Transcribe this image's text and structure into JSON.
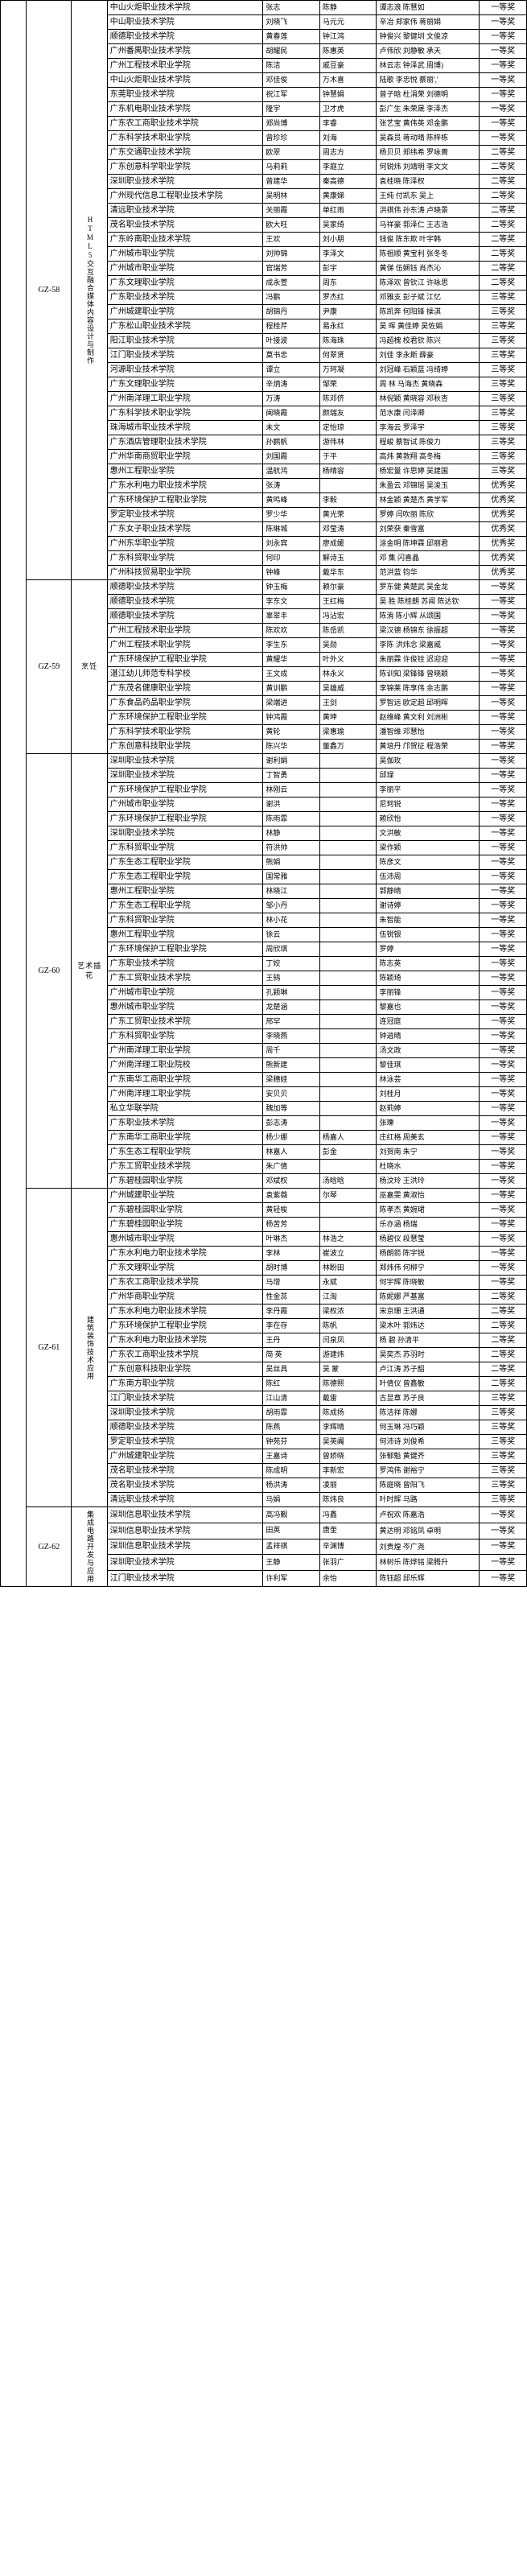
{
  "groups": [
    {
      "code": "GZ-58",
      "category": "HTML5交互融合媒体内容设计与制作",
      "category_vertical": true,
      "rows": [
        {
          "school": "中山火炬职业技术学院",
          "t1": "张志",
          "t2": "陈静",
          "adv": "谭志浪 陈慧如",
          "award": "一等奖"
        },
        {
          "school": "中山职业技术学院",
          "t1": "刘晓飞",
          "t2": "马元元",
          "adv": "辛冶 郑家伟 蒋丽娟",
          "award": "一等奖"
        },
        {
          "school": "顺德职业技术学院",
          "t1": "黄春莲",
          "t2": "钟江鸿",
          "adv": "钟俊兴 黎健圳 文俊凉",
          "award": "一等奖"
        },
        {
          "school": "广州番禺职业技术学院",
          "t1": "胡耀民",
          "t2": "陈惠英",
          "adv": "卢伟欣 刘静敏 承天",
          "award": "一等奖"
        },
        {
          "school": "广州工程技术职业学院",
          "t1": "陈洁",
          "t2": "戚豆豪",
          "adv": "林云志 钟泽武 周博)",
          "award": "一等奖"
        },
        {
          "school": "中山火炬职业技术学院",
          "t1": "邓佳俊",
          "t2": "万木喜",
          "adv": "陆歌 李忠悦 蔡丽','",
          "award": "一等奖"
        },
        {
          "school": "东莞职业技术学院",
          "t1": "祝江军",
          "t2": "钟慧娟",
          "adv": "曾子晗 杜涓荣 刘德明",
          "award": "一等奖"
        },
        {
          "school": "广东机电职业技术学院",
          "t1": "隆宇",
          "t2": "卫才虎",
          "adv": "彭广生 朱荣晟 李泽杰",
          "award": "一等奖"
        },
        {
          "school": "广东农工商职业技术学院",
          "t1": "郑尚博",
          "t2": "李睿",
          "adv": "张艺宝 黄伟英 邓金鹏",
          "award": "一等奖"
        },
        {
          "school": "广东科学技术职业学院",
          "t1": "曾珍珍",
          "t2": "刘海",
          "adv": "吴森员 蒋动晴 陈梓栋",
          "award": "一等奖"
        },
        {
          "school": "广东交通职业技术学院",
          "t1": "欧翠",
          "t2": "周志方",
          "adv": "杨贝贝 郑纬希 罗咏菁",
          "award": "二等奖"
        },
        {
          "school": "广东创意科学职业学院",
          "t1": "马莉莉",
          "t2": "李庭立",
          "adv": "何锐炜 刘靖明 李文文",
          "award": "二等奖"
        },
        {
          "school": "深圳职业技术学院",
          "t1": "曾建华",
          "t2": "秦高德",
          "adv": "袁桂晓 陈泽权",
          "award": "二等奖"
        },
        {
          "school": "广州现代信息工程职业技术学院",
          "t1": "吴明林",
          "t2": "黄康娣",
          "adv": "王纯 付凯东 吴上",
          "award": "二等奖"
        },
        {
          "school": "清远职业技术学院",
          "t1": "关丽霞",
          "t2": "单红雨",
          "adv": "洪祺伟 孙东涛 卢晓景",
          "award": "二等奖"
        },
        {
          "school": "茂名职业技术学院",
          "t1": "欧大旺",
          "t2": "吴家绮",
          "adv": "马祥豪 郭泽仁 王志浩",
          "award": "二等奖"
        },
        {
          "school": "广东岭南职业技术学院",
          "t1": "王欢",
          "t2": "刘小朋",
          "adv": "钱俊 陈东欺 叶宇韩",
          "award": "二等奖"
        },
        {
          "school": "广州城市职业学院",
          "t1": "刘帅锦",
          "t2": "李泽文",
          "adv": "陈祖顺 黄宝利 张冬冬",
          "award": "二等奖"
        },
        {
          "school": "广州城市职业学院",
          "t1": "官瑞芳",
          "t2": "彭宇",
          "adv": "黄俤 伍娴钰 肖杰沁",
          "award": "二等奖"
        },
        {
          "school": "广东文理职业学院",
          "t1": "成永萱",
          "t2": "周东",
          "adv": "陈泽欢 曾钦江 许咏思",
          "award": "二等奖"
        },
        {
          "school": "广东职业技术学院",
          "t1": "冯鹏",
          "t2": "罗杰红",
          "adv": "邓雅支 彭子斌 江忆",
          "award": "三等奖"
        },
        {
          "school": "广州城建职业学院",
          "t1": "胡锦丹",
          "t2": "尹康",
          "adv": "陈凯奔 何阳锋 操淇",
          "award": "三等奖"
        },
        {
          "school": "广东松山职业技术学院",
          "t1": "程桂芹",
          "t2": "易永红",
          "adv": "吴  晖 黄佳婷 吴佐娟",
          "award": "三等奖"
        },
        {
          "school": "阳江职业技术学院",
          "t1": "叶接波",
          "t2": "陈海珠",
          "adv": "冯超槐 校君钦 陈兴",
          "award": "三等奖"
        },
        {
          "school": "江门职业技术学院",
          "t1": "莫书忠",
          "t2": "何翠贤",
          "adv": "刘佳 李永斯 薛豪",
          "award": "三等奖"
        },
        {
          "school": "河源职业技术学院",
          "t1": "谭立",
          "t2": "万珂凝",
          "adv": "刘冠峰 石颖蓝 冯绮婷",
          "award": "三等奖"
        },
        {
          "school": "广东文理职业学院",
          "t1": "辛炳涛",
          "t2": "邹荣",
          "adv": "周 林 马海杰 黄晓森",
          "award": "三等奖"
        },
        {
          "school": "广州南洋理工职业学院",
          "t1": "万涛",
          "t2": "陈邓侪",
          "adv": "林倪颖 黄晓容 邓秋杏",
          "award": "三等奖"
        },
        {
          "school": "广东科学技术职业学院",
          "t1": "闽晓霞",
          "t2": "颜瑞友",
          "adv": "范水康 闫泽卿",
          "award": "三等奖"
        },
        {
          "school": "珠海城市职业技术学院",
          "t1": "未文",
          "t2": "定怡琼",
          "adv": "李海云 罗泽宇",
          "award": "三等奖"
        },
        {
          "school": "广东酒店管理职业技术学院",
          "t1": "孙鹂帆",
          "t2": "游伟林",
          "adv": "程峻 蔡智试 陈俊力",
          "award": "三等奖"
        },
        {
          "school": "广州华南商贸职业学院",
          "t1": "刘国霞",
          "t2": "于平",
          "adv": "高炜 黄敦翔 高冬梅",
          "award": "三等奖"
        },
        {
          "school": "惠州工程职业学院",
          "t1": "温航鸿",
          "t2": "杨晴容",
          "adv": "杨宏量 许思婷 吴建国",
          "award": "三等奖"
        },
        {
          "school": "广东水利电力职业技术学院",
          "t1": "张涛",
          "t2": "",
          "adv": "朱盈云 邓锦瑶 吴浚玉",
          "award": "优秀奖"
        },
        {
          "school": "广东环境保护工程职业学院",
          "t1": "黄鸣峰",
          "t2": "李毅",
          "adv": "林金颖 黄楚杰 黄学军",
          "award": "优秀奖"
        },
        {
          "school": "罗定职业技术学院",
          "t1": "罗少华",
          "t2": "黄光荣",
          "adv": "罗婷 闫吹丽 陈欣",
          "award": "优秀奖"
        },
        {
          "school": "广东女子职业技术学院",
          "t1": "陈琳城",
          "t2": "邓莹涛",
          "adv": "刘荣获 秦雪富",
          "award": "优秀奖"
        },
        {
          "school": "广州东华职业学院",
          "t1": "刘永宾",
          "t2": "廖成媛",
          "adv": "涂金明 陈坤霖 邱丽君",
          "award": "优秀奖"
        },
        {
          "school": "广东科贸职业学院",
          "t1": "何印",
          "t2": "解诗玉",
          "adv": "邓 集 闪喜晶",
          "award": "优秀奖"
        },
        {
          "school": "广州科技贸易职业学院",
          "t1": "钟峰",
          "t2": "戴华东",
          "adv": "范洪蓝 钧华",
          "award": "优秀奖"
        }
      ]
    },
    {
      "code": "GZ-59",
      "category": "烹饪",
      "category_vertical": false,
      "rows": [
        {
          "school": "顺德职业技术学院",
          "t1": "钟玉梅",
          "t2": "赖尔豪",
          "adv": "罗东健 黄楚武 吴金龙",
          "award": "一等奖"
        },
        {
          "school": "顺德职业技术学院",
          "t1": "李东文",
          "t2": "王红梅",
          "adv": "吴 胜 陈桂朗 苏闻 陈达钦",
          "award": "一等奖"
        },
        {
          "school": "顺德职业技术学院",
          "t1": "辜翠丰",
          "t2": "冯沾宏",
          "adv": "陈洧 陈小辉 从颂国",
          "award": "一等奖"
        },
        {
          "school": "广州工程技术职业学院",
          "t1": "陈欢欢",
          "t2": "陈岳凯",
          "adv": "梁汉德 杨锦东 徐振超",
          "award": "一等奖"
        },
        {
          "school": "广州工程技术职业学院",
          "t1": "李生东",
          "t2": "吴勋",
          "adv": "李陈 洪炜念 梁嘉威",
          "award": "一等奖"
        },
        {
          "school": "广东环境保护工程职业学院",
          "t1": "黄耀华",
          "t2": "叶外义",
          "adv": "朱丽霖 许俊铨 迟迎迎",
          "award": "一等奖"
        },
        {
          "school": "湛江幼儿师范专科学校",
          "t1": "王文成",
          "t2": "林永义",
          "adv": "陈训知 梁锋锋 曾晓颖",
          "award": "一等奖"
        },
        {
          "school": "广东茂名健康职业学院",
          "t1": "黄训鹏",
          "t2": "吴雄威",
          "adv": "李锦莱 陈享伟 余志鹏",
          "award": "一等奖"
        },
        {
          "school": "广东食品药品职业学院",
          "t1": "梁端进",
          "t2": "王剑",
          "adv": "罗智远 欧定超 邱明晖",
          "award": "一等奖"
        },
        {
          "school": "广东环境保护工程职业学院",
          "t1": "钟鸿霞",
          "t2": "黄坤",
          "adv": "赵维峰 黄文利 刘洲彬",
          "award": "一等奖"
        },
        {
          "school": "广东科学技术职业学院",
          "t1": "黄轮",
          "t2": "梁惠瑜",
          "adv": "潘智维 邓慧怡",
          "award": "一等奖"
        },
        {
          "school": "广东创意科技职业学院",
          "t1": "陈兴华",
          "t2": "董鑫万",
          "adv": "黄培丹 邝贺征 程浩荣",
          "award": "一等奖"
        }
      ]
    },
    {
      "code": "GZ-60",
      "category": "艺术插花",
      "category_vertical": false,
      "rows": [
        {
          "school": "深圳职业技术学院",
          "t1": "谢利娟",
          "t2": "",
          "adv": "吴伽玫",
          "award": "一等奖"
        },
        {
          "school": "深圳职业技术学院",
          "t1": "丁智勇",
          "t2": "",
          "adv": "邱琭",
          "award": "一等奖"
        },
        {
          "school": "广东环境保护工程职业学院",
          "t1": "林刚云",
          "t2": "",
          "adv": "李丽平",
          "award": "一等奖"
        },
        {
          "school": "广州城市职业学院",
          "t1": "谢洪",
          "t2": "",
          "adv": "尼珂锐",
          "award": "一等奖"
        },
        {
          "school": "广东环境保护工程职业学院",
          "t1": "陈雨霏",
          "t2": "",
          "adv": "赖欣怡",
          "award": "一等奖"
        },
        {
          "school": "深圳职业技术学院",
          "t1": "林静",
          "t2": "",
          "adv": "文洪敏",
          "award": "一等奖"
        },
        {
          "school": "广东科贸职业学院",
          "t1": "符洪帅",
          "t2": "",
          "adv": "梁作颖",
          "award": "一等奖"
        },
        {
          "school": "广东生态工程职业学院",
          "t1": "熊娟",
          "t2": "",
          "adv": "陈彦文",
          "award": "一等奖"
        },
        {
          "school": "广东生态工程职业学院",
          "t1": "国常雅",
          "t2": "",
          "adv": "伍沛周",
          "award": "一等奖"
        },
        {
          "school": "惠州工程职业学院",
          "t1": "林晓江",
          "t2": "",
          "adv": "郭静晴",
          "award": "一等奖"
        },
        {
          "school": "广东生态工程职业学院",
          "t1": "邹小丹",
          "t2": "",
          "adv": "谢诗婷",
          "award": "一等奖"
        },
        {
          "school": "广东科贸职业学院",
          "t1": "林小花",
          "t2": "",
          "adv": "朱智能",
          "award": "一等奖"
        },
        {
          "school": "惠州工程职业学院",
          "t1": "徐云",
          "t2": "",
          "adv": "伍锐银",
          "award": "一等奖"
        },
        {
          "school": "广东环境保护工程职业学院",
          "t1": "周欣琪",
          "t2": "",
          "adv": "罗婷",
          "award": "一等奖"
        },
        {
          "school": "广东职业技术学院",
          "t1": "丁姣",
          "t2": "",
          "adv": "陈志英",
          "award": "一等奖"
        },
        {
          "school": "广东工贸职业技术学院",
          "t1": "王鸫",
          "t2": "",
          "adv": "陈颖琦",
          "award": "一等奖"
        },
        {
          "school": "广州城市职业学院",
          "t1": "孔颖琳",
          "t2": "",
          "adv": "李丽锋",
          "award": "一等奖"
        },
        {
          "school": "惠州城市职业学院",
          "t1": "龙楚涵",
          "t2": "",
          "adv": "黎嘉也",
          "award": "一等奖"
        },
        {
          "school": "广东工贸职业技术学院",
          "t1": "邢罕",
          "t2": "",
          "adv": "连冠庭",
          "award": "一等奖"
        },
        {
          "school": "广东科贸职业学院",
          "t1": "李晓燕",
          "t2": "",
          "adv": "钟逍晴",
          "award": "一等奖"
        },
        {
          "school": "广州南洋理工职业学院",
          "t1": "周千",
          "t2": "",
          "adv": "汤文政",
          "award": "一等奖"
        },
        {
          "school": "广州南洋理工职业院校",
          "t1": "熊新建",
          "t2": "",
          "adv": "黎佳琪",
          "award": "一等奖"
        },
        {
          "school": "广东南华工商职业学院",
          "t1": "梁穗娃",
          "t2": "",
          "adv": "林泳芸",
          "award": "一等奖"
        },
        {
          "school": "广州南洋理工职业学院",
          "t1": "安贝贝",
          "t2": "",
          "adv": "刘桂月",
          "award": "一等奖"
        },
        {
          "school": "私立华联学院",
          "t1": "魏加等",
          "t2": "",
          "adv": "赵莉婷",
          "award": "一等奖"
        },
        {
          "school": "广东职业技术学院",
          "t1": "彭志涛",
          "t2": "",
          "adv": "张瓅",
          "award": "一等奖"
        },
        {
          "school": "广东南华工商职业学院",
          "t1": "杨少娜",
          "t2": "杨嘉人",
          "adv": "庄红格 周美玄",
          "award": "一等奖"
        },
        {
          "school": "广东生态工程职业学院",
          "t1": "林嘉人",
          "t2": "彭金",
          "adv": "刘贺南 朱宁",
          "award": "一等奖"
        },
        {
          "school": "广东工贸职业技术学院",
          "t1": "朱广倩",
          "t2": "",
          "adv": "杜晓水",
          "award": "一等奖"
        },
        {
          "school": "广东碧桂园职业学院",
          "t1": "邓斌权",
          "t2": "汤晗晗",
          "adv": "杨汶玲 王洪玲",
          "award": "一等奖"
        }
      ]
    },
    {
      "code": "GZ-61",
      "category": "建筑装饰技术应用",
      "category_vertical": true,
      "rows": [
        {
          "school": "广州城建职业学院",
          "t1": "袁紫薇",
          "t2": "尔琴",
          "adv": "巫嘉雯 黄淑怡",
          "award": "一等奖"
        },
        {
          "school": "广东碧桂园职业学院",
          "t1": "黄轻梭",
          "t2": "",
          "adv": "陈孝杰 黄婉珺",
          "award": "一等奖"
        },
        {
          "school": "广东碧桂园职业学院",
          "t1": "杨苦芳",
          "t2": "",
          "adv": "乐亦涵 杨瑞",
          "award": "一等奖"
        },
        {
          "school": "惠州城市职业学院",
          "t1": "叶琳杰",
          "t2": "林浩之",
          "adv": "杨碧仪 段慧莹",
          "award": "一等奖"
        },
        {
          "school": "广东水利电力职业技术学院",
          "t1": "李林",
          "t2": "崔波立",
          "adv": "杨朗箭 陈宇锐",
          "award": "一等奖"
        },
        {
          "school": "广东文理职业学院",
          "t1": "胡时博",
          "t2": "林盼田",
          "adv": "郑炜伟 何柳宁",
          "award": "一等奖"
        },
        {
          "school": "广东农工商职业技术学院",
          "t1": "马增",
          "t2": "永斌",
          "adv": "何宇辉 陈晓敏",
          "award": "一等奖"
        },
        {
          "school": "广州华商职业学院",
          "t1": "性金蕊",
          "t2": "江淘",
          "adv": "陈妮娜 严基富",
          "award": "二等奖"
        },
        {
          "school": "广东水利电力职业技术学院",
          "t1": "李丹霞",
          "t2": "梁权浓",
          "adv": "宋京珊 王洪通",
          "award": "二等奖"
        },
        {
          "school": "广东环境保护工程职业学院",
          "t1": "李在存",
          "t2": "陈帆",
          "adv": "梁木叶 郭炜达",
          "award": "二等奖"
        },
        {
          "school": "广东水利电力职业技术学院",
          "t1": "王丹",
          "t2": "闫泉凤",
          "adv": "杨  碧 孙清平",
          "award": "二等奖"
        },
        {
          "school": "广东农工商职业技术学院",
          "t1": "简  英",
          "t2": "游建炜",
          "adv": "吴奕杰 苏羽时",
          "award": "二等奖"
        },
        {
          "school": "广东创意科技职业学院",
          "t1": "吴丝具",
          "t2": "吴  蒙",
          "adv": "卢江涛 苏子韶",
          "award": "二等奖"
        },
        {
          "school": "广东南方职业学院",
          "t1": "陈红",
          "t2": "陈德熙",
          "adv": "叶倩仪 曾鑫敏",
          "award": "二等奖"
        },
        {
          "school": "江门职业技术学院",
          "t1": "江山清",
          "t2": "戴雷",
          "adv": "古显章 苏子良",
          "award": "三等奖"
        },
        {
          "school": "深圳职业技术学院",
          "t1": "胡雨霏",
          "t2": "陈成扬",
          "adv": "陈洁祥 陈娜",
          "award": "三等奖"
        },
        {
          "school": "顺德职业技术学院",
          "t1": "陈燕",
          "t2": "李辉晴",
          "adv": "何玉琳 冯巧颖",
          "award": "三等奖"
        },
        {
          "school": "罗定职业技术学院",
          "t1": "钟苑芬",
          "t2": "吴英阗",
          "adv": "何沛诗 刘俊希",
          "award": "三等奖"
        },
        {
          "school": "广州城建职业学院",
          "t1": "王嘉诗",
          "t2": "曾娇晓",
          "adv": "张郁魁 黄健齐",
          "award": "三等奖"
        },
        {
          "school": "茂名职业技术学院",
          "t1": "陈成明",
          "t2": "李新宏",
          "adv": "罗鸿伟 谢裕宁",
          "award": "三等奖"
        },
        {
          "school": "茂名职业技术学院",
          "t1": "杨洪涛",
          "t2": "凌丽",
          "adv": "陈庭晓 曾阳飞",
          "award": "三等奖"
        },
        {
          "school": "清远职业技术学院",
          "t1": "马娟",
          "t2": "陈炜良",
          "adv": "叶时辉 马路",
          "award": "三等奖"
        }
      ]
    },
    {
      "code": "GZ-62",
      "category": "集成电路开发与应用",
      "category_vertical": true,
      "rows": [
        {
          "school": "深圳信息职业技术学院",
          "t1": "高冯觐",
          "t2": "冯鑫",
          "adv": "卢祝欢 陈嘉浩",
          "award": "一等奖"
        },
        {
          "school": "深圳信息职业技术学院",
          "t1": "田英",
          "t2": "唐奎",
          "adv": "黄达明 邓铭凤 卓明",
          "award": "一等奖"
        },
        {
          "school": "深圳信息职业技术学院",
          "t1": "孟祥祺",
          "t2": "辛渊博",
          "adv": "刘贵煌 岑广尧",
          "award": "一等奖"
        },
        {
          "school": "深圳职业技术学院",
          "t1": "王静",
          "t2": "张羽广",
          "adv": "林树乐 陈烨铭 梁腾升",
          "award": "一等奖"
        },
        {
          "school": "江门职业技术学院",
          "t1": "许利军",
          "t2": "余怡",
          "adv": "陈钰超 邱乐辉",
          "award": "一等奖"
        }
      ]
    }
  ]
}
